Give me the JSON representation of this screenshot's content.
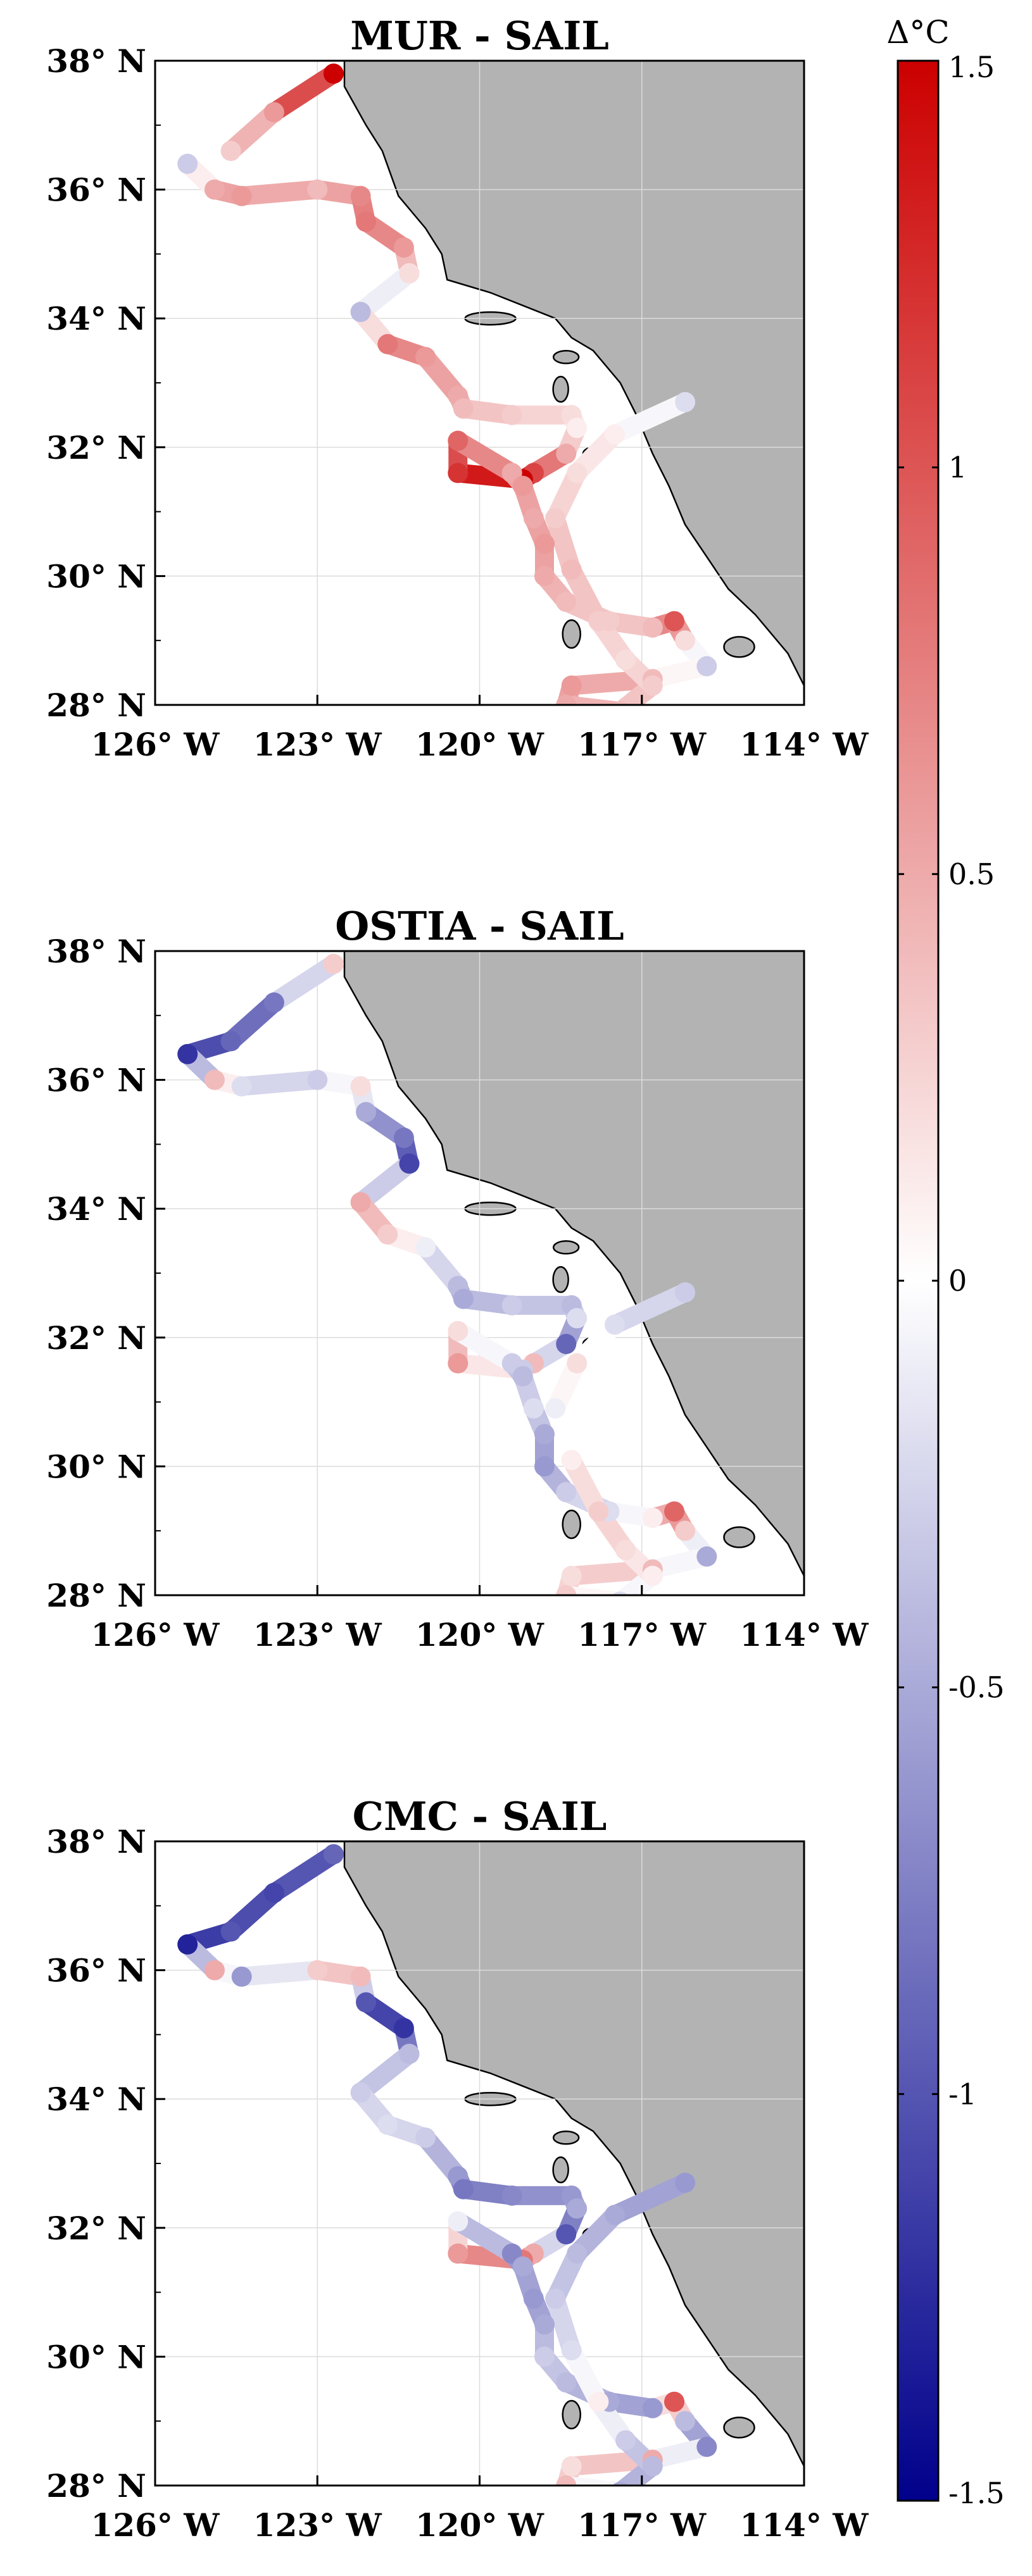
{
  "colormap": {
    "low": "#00008b",
    "mid": "#ffffff",
    "high": "#cc0000"
  },
  "land_color": "#b3b3b3",
  "colorbar": {
    "label": "Δ°C",
    "ticks": [
      "1.5",
      "1",
      "0.5",
      "0",
      "-0.5",
      "-1",
      "-1.5"
    ],
    "tick_values": [
      1.5,
      1,
      0.5,
      0,
      -0.5,
      -1,
      -1.5
    ],
    "range": [
      -1.5,
      1.5
    ]
  },
  "chart_data": [
    {
      "type": "scatter",
      "title": "MUR - SAIL",
      "xlabel": "",
      "ylabel": "",
      "xlim": [
        -126,
        -114
      ],
      "ylim": [
        28,
        38
      ],
      "xticks": [
        "126° W",
        "123° W",
        "120° W",
        "117° W",
        "114° W"
      ],
      "yticks": [
        "38° N",
        "36° N",
        "34° N",
        "32° N",
        "30° N",
        "28° N"
      ],
      "grid": true,
      "track_lon": [
        -122.7,
        -123.8,
        -124.6,
        -125.4,
        -124.9,
        -124.4,
        -123.0,
        -122.2,
        -122.1,
        -121.4,
        -121.3,
        -122.2,
        -121.7,
        -121.0,
        -120.4,
        -120.3,
        -119.4,
        -118.3,
        -118.2,
        -118.4,
        -119.0,
        -119.2,
        -120.4,
        -120.4,
        -119.4,
        -119.2,
        -119.0,
        -118.8,
        -118.8,
        -118.4,
        -117.6,
        -116.8,
        -116.4,
        -116.2,
        -115.8,
        -116.8,
        -118.3,
        -118.4,
        -117.4,
        -116.8,
        -117.3,
        -117.8,
        -118.3,
        -118.6,
        -118.2,
        -117.5,
        -116.2
      ],
      "track_lat": [
        37.8,
        37.2,
        36.6,
        36.4,
        36.0,
        35.9,
        36.0,
        35.9,
        35.5,
        35.1,
        34.7,
        34.1,
        33.6,
        33.4,
        32.8,
        32.6,
        32.5,
        32.5,
        32.3,
        31.9,
        31.6,
        31.5,
        31.6,
        32.1,
        31.6,
        31.4,
        30.9,
        30.5,
        30.0,
        29.6,
        29.3,
        29.2,
        29.3,
        29.0,
        28.6,
        28.4,
        28.3,
        28.0,
        27.9,
        28.3,
        28.7,
        29.3,
        30.1,
        30.9,
        31.6,
        32.2,
        32.7
      ],
      "values": [
        1.5,
        0.6,
        0.3,
        -0.3,
        0.5,
        0.6,
        0.4,
        0.7,
        0.8,
        0.6,
        0.2,
        -0.4,
        0.8,
        0.6,
        0.5,
        0.4,
        0.3,
        0.2,
        0.1,
        0.5,
        1.1,
        1.5,
        1.2,
        0.9,
        0.5,
        0.6,
        0.5,
        0.6,
        0.5,
        0.4,
        0.3,
        0.4,
        1.0,
        0.2,
        -0.3,
        0.4,
        0.6,
        0.5,
        0.4,
        0.3,
        0.2,
        0.3,
        0.4,
        0.3,
        0.2,
        0.1,
        -0.2
      ]
    },
    {
      "type": "scatter",
      "title": "OSTIA - SAIL",
      "xlabel": "",
      "ylabel": "",
      "xlim": [
        -126,
        -114
      ],
      "ylim": [
        28,
        38
      ],
      "xticks": [
        "126° W",
        "123° W",
        "120° W",
        "117° W",
        "114° W"
      ],
      "yticks": [
        "38° N",
        "36° N",
        "34° N",
        "32° N",
        "30° N",
        "28° N"
      ],
      "grid": true,
      "track_lon": [
        -122.7,
        -123.8,
        -124.6,
        -125.4,
        -124.9,
        -124.4,
        -123.0,
        -122.2,
        -122.1,
        -121.4,
        -121.3,
        -122.2,
        -121.7,
        -121.0,
        -120.4,
        -120.3,
        -119.4,
        -118.3,
        -118.2,
        -118.4,
        -119.0,
        -119.2,
        -120.4,
        -120.4,
        -119.4,
        -119.2,
        -119.0,
        -118.8,
        -118.8,
        -118.4,
        -117.6,
        -116.8,
        -116.4,
        -116.2,
        -115.8,
        -116.8,
        -118.3,
        -118.4,
        -117.4,
        -116.8,
        -117.3,
        -117.8,
        -118.3,
        -118.6,
        -118.2,
        -117.5,
        -116.2
      ],
      "track_lat": [
        37.8,
        37.2,
        36.6,
        36.4,
        36.0,
        35.9,
        36.0,
        35.9,
        35.5,
        35.1,
        34.7,
        34.1,
        33.6,
        33.4,
        32.8,
        32.6,
        32.5,
        32.5,
        32.3,
        31.9,
        31.6,
        31.5,
        31.6,
        32.1,
        31.6,
        31.4,
        30.9,
        30.5,
        30.0,
        29.6,
        29.3,
        29.2,
        29.3,
        29.0,
        28.6,
        28.4,
        28.3,
        28.0,
        27.9,
        28.3,
        28.7,
        29.3,
        30.1,
        30.9,
        31.6,
        32.2,
        32.7
      ],
      "values": [
        0.3,
        -0.8,
        -0.9,
        -1.2,
        0.4,
        -0.2,
        -0.3,
        0.2,
        -0.5,
        -0.8,
        -1.1,
        0.5,
        0.3,
        -0.1,
        -0.4,
        -0.5,
        -0.3,
        -0.4,
        -0.2,
        -0.9,
        0.4,
        -0.3,
        0.6,
        0.2,
        -0.3,
        -0.4,
        -0.2,
        -0.5,
        -0.6,
        -0.3,
        -0.2,
        0.1,
        0.9,
        0.3,
        -0.5,
        0.4,
        0.2,
        0.3,
        -0.2,
        0.1,
        0.2,
        0.3,
        0.1,
        -0.1,
        0.2,
        -0.2,
        -0.3
      ]
    },
    {
      "type": "scatter",
      "title": "CMC - SAIL",
      "xlabel": "",
      "ylabel": "",
      "xlim": [
        -126,
        -114
      ],
      "ylim": [
        28,
        38
      ],
      "xticks": [
        "126° W",
        "123° W",
        "120° W",
        "117° W",
        "114° W"
      ],
      "yticks": [
        "38° N",
        "36° N",
        "34° N",
        "32° N",
        "30° N",
        "28° N"
      ],
      "grid": true,
      "track_lon": [
        -122.7,
        -123.8,
        -124.6,
        -125.4,
        -124.9,
        -124.4,
        -123.0,
        -122.2,
        -122.1,
        -121.4,
        -121.3,
        -122.2,
        -121.7,
        -121.0,
        -120.4,
        -120.3,
        -119.4,
        -118.3,
        -118.2,
        -118.4,
        -119.0,
        -119.2,
        -120.4,
        -120.4,
        -119.4,
        -119.2,
        -119.0,
        -118.8,
        -118.8,
        -118.4,
        -117.6,
        -116.8,
        -116.4,
        -116.2,
        -115.8,
        -116.8,
        -118.3,
        -118.4,
        -117.4,
        -116.8,
        -117.3,
        -117.8,
        -118.3,
        -118.6,
        -118.2,
        -117.5,
        -116.2
      ],
      "track_lat": [
        37.8,
        37.2,
        36.6,
        36.4,
        36.0,
        35.9,
        36.0,
        35.9,
        35.5,
        35.1,
        34.7,
        34.1,
        33.6,
        33.4,
        32.8,
        32.6,
        32.5,
        32.5,
        32.3,
        31.9,
        31.6,
        31.5,
        31.6,
        32.1,
        31.6,
        31.4,
        30.9,
        30.5,
        30.0,
        29.6,
        29.3,
        29.2,
        29.3,
        29.0,
        28.6,
        28.4,
        28.3,
        28.0,
        27.9,
        28.3,
        28.7,
        29.3,
        30.1,
        30.9,
        31.6,
        32.2,
        32.7
      ],
      "values": [
        -0.9,
        -1.1,
        -1.0,
        -1.3,
        0.5,
        -0.6,
        0.3,
        0.4,
        -1.0,
        -1.2,
        -0.4,
        -0.3,
        -0.2,
        -0.3,
        -0.6,
        -0.8,
        -0.7,
        -0.6,
        -0.5,
        -1.0,
        0.5,
        0.8,
        0.6,
        -0.1,
        -0.7,
        -0.5,
        -0.6,
        -0.5,
        -0.3,
        -0.4,
        -0.5,
        -0.6,
        1.0,
        -0.4,
        -0.7,
        0.5,
        0.2,
        0.4,
        -0.5,
        -0.4,
        -0.3,
        0.1,
        -0.2,
        -0.3,
        -0.4,
        -0.5,
        -0.6
      ]
    }
  ]
}
